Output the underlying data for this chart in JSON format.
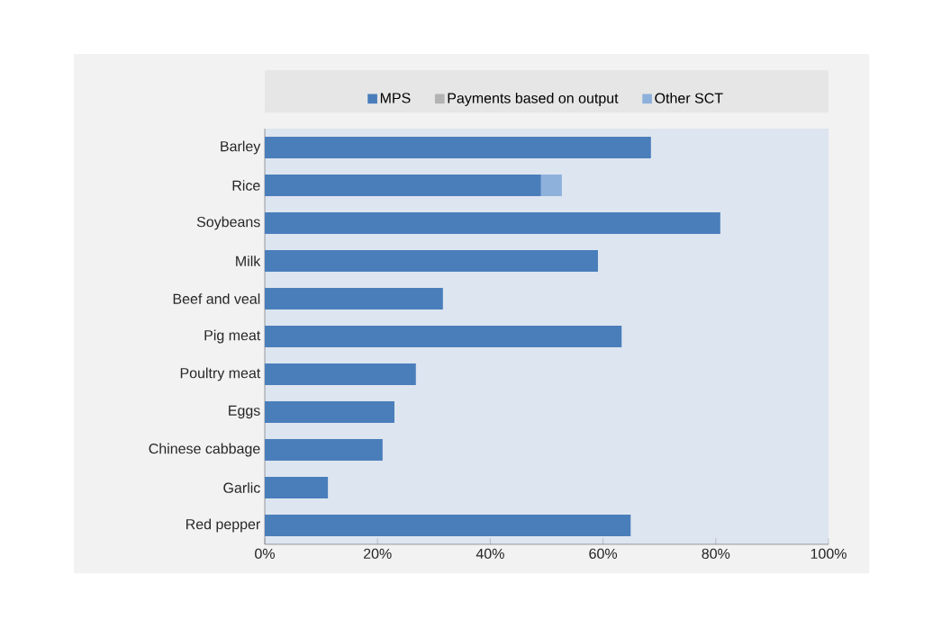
{
  "chart_data": {
    "type": "bar",
    "orientation": "horizontal",
    "stacked": true,
    "categories": [
      "Barley",
      "Rice",
      "Soybeans",
      "Milk",
      "Beef and veal",
      "Pig meat",
      "Poultry meat",
      "Eggs",
      "Chinese cabbage",
      "Garlic",
      "Red pepper"
    ],
    "series": [
      {
        "name": "MPS",
        "color": "#4a7ebb",
        "values": [
          68.5,
          49.0,
          80.8,
          59.1,
          31.6,
          63.3,
          26.8,
          23.0,
          20.9,
          11.2,
          64.9
        ]
      },
      {
        "name": "Payments based on output",
        "color": "#b3b3b3",
        "values": [
          0,
          0,
          0,
          0,
          0,
          0,
          0,
          0,
          0,
          0,
          0
        ]
      },
      {
        "name": "Other SCT",
        "color": "#8eb1dc",
        "values": [
          0,
          3.7,
          0,
          0,
          0,
          0,
          0,
          0,
          0,
          0,
          0
        ]
      }
    ],
    "xlim": [
      0,
      100
    ],
    "xticks": [
      {
        "value": 0,
        "label": "0%"
      },
      {
        "value": 20,
        "label": "20%"
      },
      {
        "value": 40,
        "label": "40%"
      },
      {
        "value": 60,
        "label": "60%"
      },
      {
        "value": 80,
        "label": "80%"
      },
      {
        "value": 100,
        "label": "100%"
      }
    ],
    "legend": "top",
    "grid": false
  }
}
